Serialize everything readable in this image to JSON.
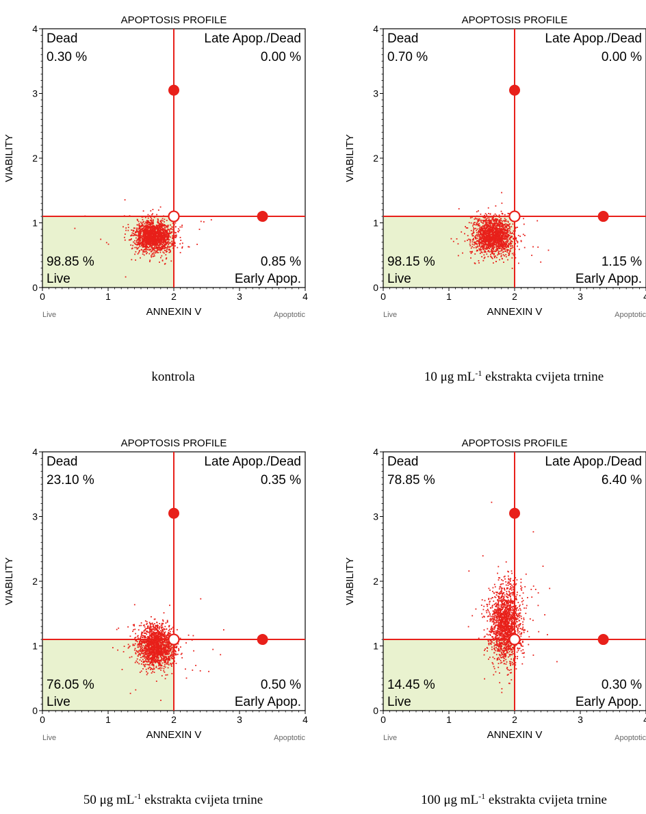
{
  "chart_data": [
    {
      "type": "scatter",
      "title": "APOPTOSIS PROFILE",
      "xlabel": "ANNEXIN V",
      "ylabel": "VIABILITY",
      "xlim": [
        0,
        4
      ],
      "ylim": [
        0,
        4
      ],
      "xticks": [
        "0",
        "1",
        "2",
        "3",
        "4"
      ],
      "yticks": [
        "0",
        "1",
        "2",
        "3",
        "4"
      ],
      "x_left_label": "Live",
      "x_right_label": "Apoptotic",
      "gate": {
        "x": 2.0,
        "y": 1.1
      },
      "markers": [
        {
          "x": 2.0,
          "y": 3.05
        },
        {
          "x": 3.35,
          "y": 1.1
        }
      ],
      "quadrants": {
        "top_left": {
          "label": "Dead",
          "value": "0.30 %"
        },
        "top_right": {
          "label": "Late Apop./Dead",
          "value": "0.00 %"
        },
        "bottom_left": {
          "label": "Live",
          "value": "98.85 %"
        },
        "bottom_right": {
          "label": "Early Apop.",
          "value": "0.85 %"
        }
      },
      "cluster": {
        "center": [
          1.68,
          0.8
        ],
        "spread": [
          0.14,
          0.12
        ]
      },
      "caption": {
        "text": "kontrola"
      }
    },
    {
      "type": "scatter",
      "title": "APOPTOSIS PROFILE",
      "xlabel": "ANNEXIN V",
      "ylabel": "VIABILITY",
      "xlim": [
        0,
        4
      ],
      "ylim": [
        0,
        4
      ],
      "xticks": [
        "0",
        "1",
        "2",
        "3",
        "4"
      ],
      "yticks": [
        "0",
        "1",
        "2",
        "3",
        "4"
      ],
      "x_left_label": "Live",
      "x_right_label": "Apoptotic",
      "gate": {
        "x": 2.0,
        "y": 1.1
      },
      "markers": [
        {
          "x": 2.0,
          "y": 3.05
        },
        {
          "x": 3.35,
          "y": 1.1
        }
      ],
      "quadrants": {
        "top_left": {
          "label": "Dead",
          "value": "0.70 %"
        },
        "top_right": {
          "label": "Late Apop./Dead",
          "value": "0.00 %"
        },
        "bottom_left": {
          "label": "Live",
          "value": "98.15 %"
        },
        "bottom_right": {
          "label": "Early Apop.",
          "value": "1.15 %"
        }
      },
      "cluster": {
        "center": [
          1.66,
          0.8
        ],
        "spread": [
          0.15,
          0.14
        ]
      },
      "caption": {
        "text": "10 μg mL",
        "sup": "-1",
        "rest": " ekstrakta cvijeta trnine"
      }
    },
    {
      "type": "scatter",
      "title": "APOPTOSIS PROFILE",
      "xlabel": "ANNEXIN V",
      "ylabel": "VIABILITY",
      "xlim": [
        0,
        4
      ],
      "ylim": [
        0,
        4
      ],
      "xticks": [
        "0",
        "1",
        "2",
        "3",
        "4"
      ],
      "yticks": [
        "0",
        "1",
        "2",
        "3",
        "4"
      ],
      "x_left_label": "Live",
      "x_right_label": "Apoptotic",
      "gate": {
        "x": 2.0,
        "y": 1.1
      },
      "markers": [
        {
          "x": 2.0,
          "y": 3.05
        },
        {
          "x": 3.35,
          "y": 1.1
        }
      ],
      "quadrants": {
        "top_left": {
          "label": "Dead",
          "value": "23.10 %"
        },
        "top_right": {
          "label": "Late Apop./Dead",
          "value": "0.35 %"
        },
        "bottom_left": {
          "label": "Live",
          "value": "76.05 %"
        },
        "bottom_right": {
          "label": "Early Apop.",
          "value": "0.50 %"
        }
      },
      "cluster": {
        "center": [
          1.72,
          1.0
        ],
        "spread": [
          0.14,
          0.16
        ]
      },
      "caption": {
        "text": "50 μg mL",
        "sup": "-1",
        "rest": " ekstrakta cvijeta trnine"
      }
    },
    {
      "type": "scatter",
      "title": "APOPTOSIS PROFILE",
      "xlabel": "ANNEXIN V",
      "ylabel": "VIABILITY",
      "xlim": [
        0,
        4
      ],
      "ylim": [
        0,
        4
      ],
      "xticks": [
        "0",
        "1",
        "2",
        "3",
        "4"
      ],
      "yticks": [
        "0",
        "1",
        "2",
        "3",
        "4"
      ],
      "x_left_label": "Live",
      "x_right_label": "Apoptotic",
      "gate": {
        "x": 2.0,
        "y": 1.1
      },
      "markers": [
        {
          "x": 2.0,
          "y": 3.05
        },
        {
          "x": 3.35,
          "y": 1.1
        }
      ],
      "quadrants": {
        "top_left": {
          "label": "Dead",
          "value": "78.85 %"
        },
        "top_right": {
          "label": "Late Apop./Dead",
          "value": "6.40 %"
        },
        "bottom_left": {
          "label": "Live",
          "value": "14.45 %"
        },
        "bottom_right": {
          "label": "Early Apop.",
          "value": "0.30 %"
        }
      },
      "cluster": {
        "center": [
          1.85,
          1.35
        ],
        "spread": [
          0.12,
          0.28
        ]
      },
      "caption": {
        "text": "100 μg mL",
        "sup": "-1",
        "rest": " ekstrakta cvijeta trnine"
      }
    }
  ]
}
